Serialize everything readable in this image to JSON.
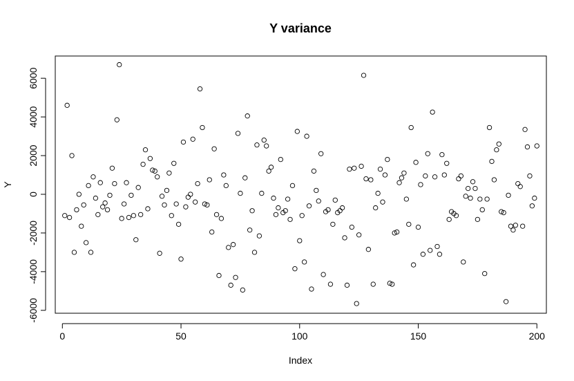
{
  "chart_data": {
    "type": "scatter",
    "title": "Y variance",
    "xlabel": "Index",
    "ylabel": "Y",
    "xlim": [
      -3,
      204
    ],
    "ylim": [
      -6150,
      7150
    ],
    "xticks": [
      0,
      50,
      100,
      150,
      200
    ],
    "yticks": [
      -6000,
      -4000,
      -2000,
      0,
      2000,
      4000,
      6000
    ],
    "grid": false,
    "marker": "open-circle",
    "series": [
      {
        "x": [
          1,
          2,
          3,
          4,
          5,
          6,
          7,
          8,
          9,
          10,
          11,
          12,
          13,
          14,
          15,
          16,
          17,
          18,
          19,
          20,
          21,
          22,
          23,
          24,
          25,
          26,
          27,
          28,
          29,
          30,
          31,
          32,
          33,
          34,
          35,
          36,
          37,
          38,
          39,
          40,
          41,
          42,
          43,
          44,
          45,
          46,
          47,
          48,
          49,
          50,
          51,
          52,
          53,
          54,
          55,
          56,
          57,
          58,
          59,
          60,
          61,
          62,
          63,
          64,
          65,
          66,
          67,
          68,
          69,
          70,
          71,
          72,
          73,
          74,
          75,
          76,
          77,
          78,
          79,
          80,
          81,
          82,
          83,
          84,
          85,
          86,
          87,
          88,
          89,
          90,
          91,
          92,
          93,
          94,
          95,
          96,
          97,
          98,
          99,
          100,
          101,
          102,
          103,
          104,
          105,
          106,
          107,
          108,
          109,
          110,
          111,
          112,
          113,
          114,
          115,
          116,
          117,
          118,
          119,
          120,
          121,
          122,
          123,
          124,
          125,
          126,
          127,
          128,
          129,
          130,
          131,
          132,
          133,
          134,
          135,
          136,
          137,
          138,
          139,
          140,
          141,
          142,
          143,
          144,
          145,
          146,
          147,
          148,
          149,
          150,
          151,
          152,
          153,
          154,
          155,
          156,
          157,
          158,
          159,
          160,
          161,
          162,
          163,
          164,
          165,
          166,
          167,
          168,
          169,
          170,
          171,
          172,
          173,
          174,
          175,
          176,
          177,
          178,
          179,
          180,
          181,
          182,
          183,
          184,
          185,
          186,
          187,
          188,
          189,
          190,
          191,
          192,
          193,
          194,
          195,
          196,
          197,
          198,
          199,
          200
        ],
        "y": [
          -1100,
          4600,
          -1200,
          2000,
          -3000,
          -800,
          0,
          -1650,
          -550,
          -2500,
          450,
          -3000,
          900,
          -200,
          -1050,
          600,
          -650,
          -450,
          -800,
          -50,
          1350,
          550,
          3850,
          6700,
          -1250,
          -500,
          600,
          -1200,
          -50,
          -1100,
          -2350,
          350,
          -1050,
          1550,
          2300,
          -750,
          1850,
          1250,
          1200,
          900,
          -3050,
          -100,
          -550,
          200,
          1100,
          -1100,
          1600,
          -500,
          -1550,
          -3350,
          2700,
          -650,
          -150,
          0,
          2850,
          -400,
          550,
          5450,
          3450,
          -500,
          -550,
          750,
          -1950,
          2350,
          -1050,
          -4200,
          -1250,
          1000,
          450,
          -2750,
          -4700,
          -2600,
          -4300,
          3150,
          50,
          -4950,
          850,
          4050,
          -1850,
          -850,
          -3000,
          2550,
          -2150,
          50,
          2800,
          2500,
          1200,
          1400,
          -200,
          -1050,
          -700,
          1800,
          -950,
          -850,
          -250,
          -1300,
          450,
          -3850,
          3250,
          -2400,
          -1100,
          -3500,
          3000,
          -600,
          -4900,
          1200,
          200,
          -350,
          2100,
          -4150,
          -900,
          -800,
          -4650,
          -1550,
          -300,
          -950,
          -850,
          -700,
          -2250,
          -4700,
          1300,
          -1700,
          1350,
          -5650,
          -2100,
          1450,
          6150,
          800,
          -2850,
          750,
          -4650,
          -700,
          50,
          1300,
          -400,
          1000,
          1800,
          -4600,
          -4650,
          -2000,
          -1950,
          600,
          850,
          1100,
          -250,
          -1550,
          3450,
          -3650,
          1650,
          -1700,
          500,
          -3100,
          950,
          2100,
          -2900,
          4250,
          900,
          -2700,
          -3100,
          2050,
          1000,
          1600,
          -1300,
          -900,
          -1000,
          -1100,
          800,
          950,
          -3500,
          -100,
          300,
          -200,
          650,
          300,
          -1300,
          -250,
          -800,
          -4100,
          -250,
          3450,
          1700,
          750,
          2300,
          2600,
          -900,
          -950,
          -5550,
          -50,
          -1650,
          -1850,
          -1600,
          550,
          400,
          -1650,
          3350,
          2450,
          950,
          -600,
          -200,
          2500
        ]
      }
    ]
  }
}
